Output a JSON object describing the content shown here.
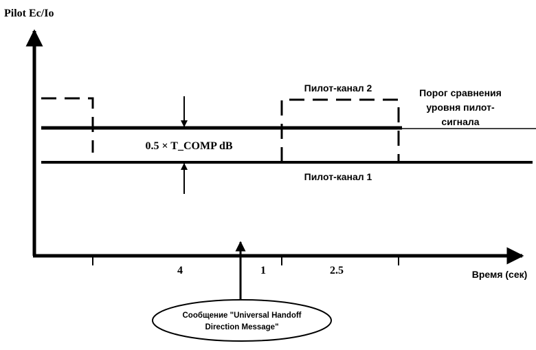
{
  "axis_y_label": "Pilot Ec/Io",
  "axis_x_label": "Время (сек)",
  "pilot_2": "Пилот-канал 2",
  "pilot_1": "Пилот-канал 1",
  "threshold": [
    "Порог сравнения",
    "уровня пилот-",
    "сигнала"
  ],
  "delta_label": "0.5 × T_COMP dB",
  "intervals": [
    "4",
    "1",
    "2.5"
  ],
  "message": [
    "Сообщение \"Universal Handoff",
    "Direction Message\""
  ]
}
